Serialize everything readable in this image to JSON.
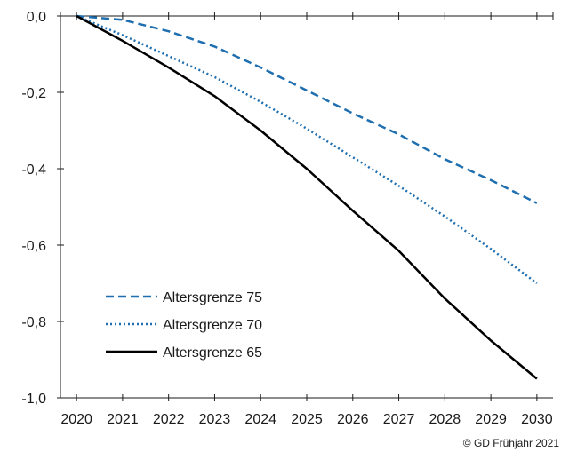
{
  "chart_data": {
    "type": "line",
    "title": "",
    "xlabel": "",
    "ylabel": "",
    "x": [
      2020,
      2021,
      2022,
      2023,
      2024,
      2025,
      2026,
      2027,
      2028,
      2029,
      2030
    ],
    "x_tick_labels": [
      "2020",
      "2021",
      "2022",
      "2023",
      "2024",
      "2025",
      "2026",
      "2027",
      "2028",
      "2029",
      "2030"
    ],
    "y_tick_labels": [
      "0,0",
      "-0,2",
      "-0,4",
      "-0,6",
      "-0,8",
      "-1,0"
    ],
    "y_ticks": [
      0.0,
      -0.2,
      -0.4,
      -0.6,
      -0.8,
      -1.0
    ],
    "ylim": [
      -1.0,
      0.0
    ],
    "xlim": [
      2019.65,
      2030.35
    ],
    "grid": false,
    "legend_position": "bottom-left",
    "series": [
      {
        "name": "Altersgrenze 75",
        "style": "dashed",
        "color": "#1f6fb0",
        "values": [
          0.0,
          -0.01,
          -0.04,
          -0.08,
          -0.135,
          -0.195,
          -0.255,
          -0.31,
          -0.375,
          -0.43,
          -0.49
        ]
      },
      {
        "name": "Altersgrenze 70",
        "style": "dotted",
        "color": "#1f6fb0",
        "values": [
          0.0,
          -0.05,
          -0.105,
          -0.16,
          -0.225,
          -0.295,
          -0.37,
          -0.445,
          -0.525,
          -0.61,
          -0.7
        ]
      },
      {
        "name": "Altersgrenze 65",
        "style": "solid",
        "color": "#000000",
        "values": [
          0.0,
          -0.065,
          -0.135,
          -0.21,
          -0.3,
          -0.4,
          -0.51,
          -0.615,
          -0.74,
          -0.85,
          -0.95
        ]
      }
    ]
  },
  "copyright": "© GD Frühjahr 2021"
}
